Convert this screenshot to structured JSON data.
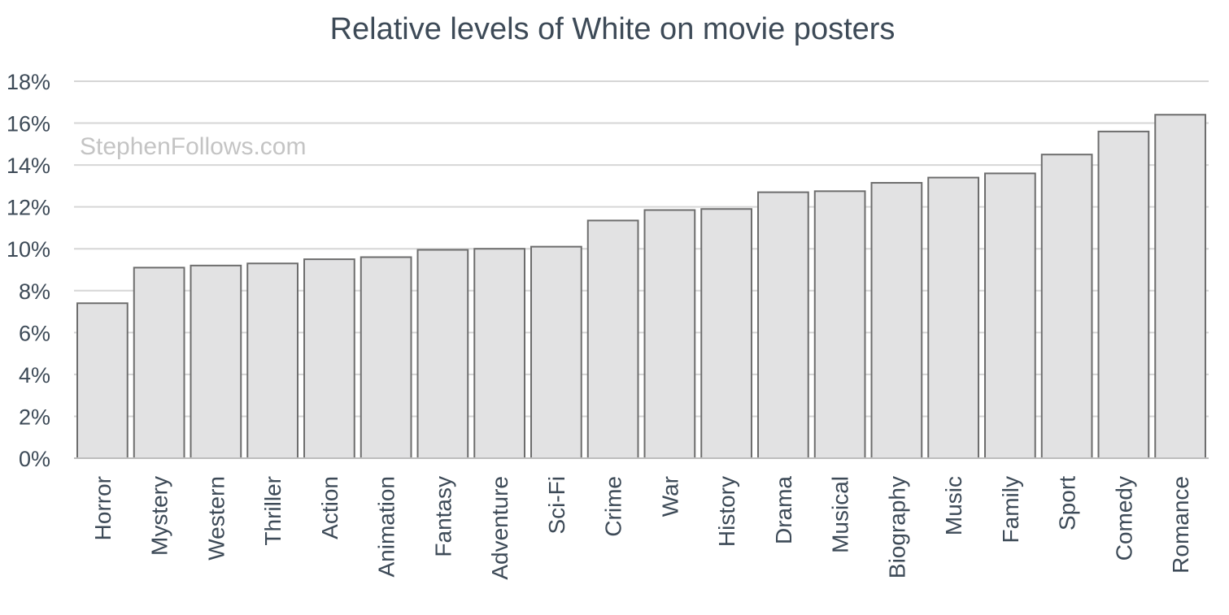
{
  "chart_data": {
    "type": "bar",
    "title": "Relative levels of White on movie posters",
    "xlabel": "",
    "ylabel": "",
    "ylim": [
      0,
      18
    ],
    "ytick_step": 2,
    "ytick_suffix": "%",
    "grid": true,
    "legend": "none",
    "watermark": "StephenFollows.com",
    "bar_color": "#e2e2e3",
    "bar_edge_color": "#6d6d6d",
    "text_color": "#3d4a57",
    "categories": [
      "Horror",
      "Mystery",
      "Western",
      "Thriller",
      "Action",
      "Animation",
      "Fantasy",
      "Adventure",
      "Sci-Fi",
      "Crime",
      "War",
      "History",
      "Drama",
      "Musical",
      "Biography",
      "Music",
      "Family",
      "Sport",
      "Comedy",
      "Romance"
    ],
    "values": [
      7.4,
      9.1,
      9.2,
      9.3,
      9.5,
      9.6,
      9.95,
      10.0,
      10.1,
      11.35,
      11.85,
      11.9,
      12.7,
      12.75,
      13.15,
      13.4,
      13.6,
      14.5,
      15.6,
      16.4
    ]
  }
}
